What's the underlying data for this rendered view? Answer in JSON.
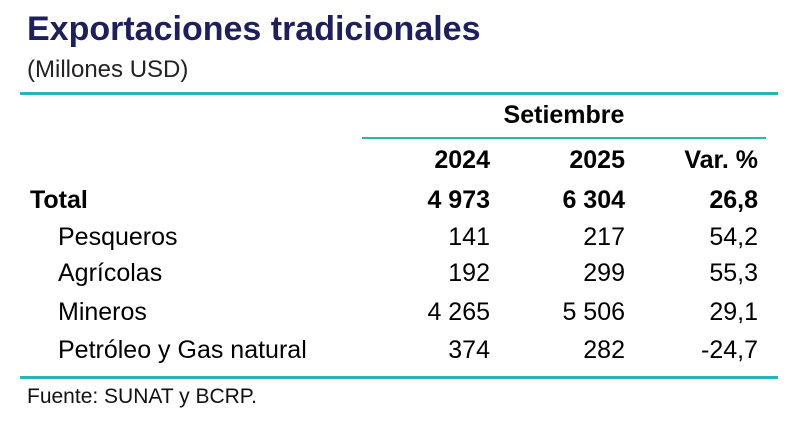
{
  "chart_data": {
    "type": "table",
    "title": "Exportaciones tradicionales",
    "subtitle": "(Millones USD)",
    "period_header": "Setiembre",
    "columns": [
      "2024",
      "2025",
      "Var. %"
    ],
    "rows": [
      {
        "label": "Total",
        "values": [
          "4 973",
          "6 304",
          "26,8"
        ],
        "bold": true
      },
      {
        "label": "Pesqueros",
        "values": [
          "141",
          "217",
          "54,2"
        ]
      },
      {
        "label": "Agrícolas",
        "values": [
          "192",
          "299",
          "55,3"
        ]
      },
      {
        "label": "Mineros",
        "values": [
          "4 265",
          "5 506",
          "29,1"
        ]
      },
      {
        "label": "Petróleo y Gas natural",
        "values": [
          "374",
          "282",
          "-24,7"
        ]
      }
    ],
    "source": "Fuente: SUNAT y BCRP.",
    "colors": {
      "title": "#1f1f5c",
      "rule": "#2ab3b9"
    }
  }
}
